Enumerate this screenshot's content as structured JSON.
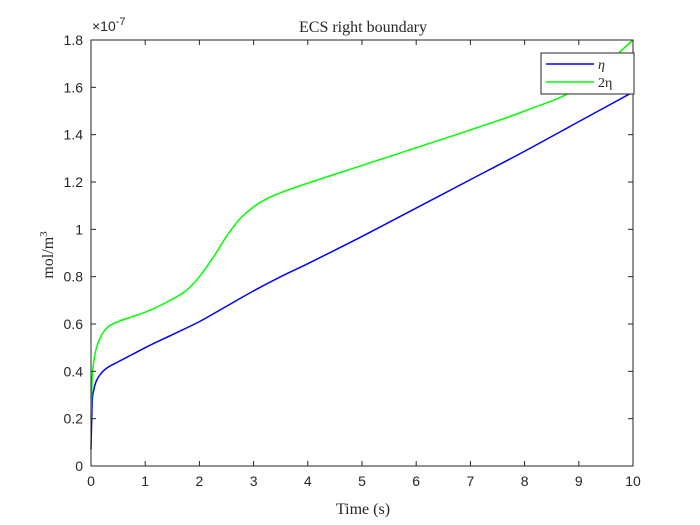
{
  "chart_data": {
    "type": "line",
    "title": "ECS right boundary",
    "xlabel": "Time (s)",
    "ylabel_base": "mol/m",
    "ylabel_exponent": "3",
    "y_multiplier": {
      "base": "×10",
      "exponent": "-7"
    },
    "xlim": [
      0,
      10
    ],
    "ylim": [
      0,
      1.8
    ],
    "x_ticks": [
      0,
      1,
      2,
      3,
      4,
      5,
      6,
      7,
      8,
      9,
      10
    ],
    "x_tick_labels": [
      "0",
      "1",
      "2",
      "3",
      "4",
      "5",
      "6",
      "7",
      "8",
      "9",
      "10"
    ],
    "y_ticks": [
      0,
      0.2,
      0.4,
      0.6,
      0.8,
      1.0,
      1.2,
      1.4,
      1.6,
      1.8
    ],
    "y_tick_labels": [
      "0",
      "0.2",
      "0.4",
      "0.6",
      "0.8",
      "1",
      "1.2",
      "1.4",
      "1.6",
      "1.8"
    ],
    "y_units_scale": "1e-7",
    "grid": false,
    "legend_position": "top-right",
    "series": [
      {
        "name": "η",
        "color": "#0000ff",
        "x": [
          0,
          0.02,
          0.05,
          0.1,
          0.2,
          0.3,
          0.5,
          0.75,
          1.0,
          1.5,
          2.0,
          2.5,
          3.0,
          3.5,
          4.0,
          5.0,
          6.0,
          7.0,
          8.0,
          9.0,
          10.0
        ],
        "y": [
          0.07,
          0.26,
          0.32,
          0.36,
          0.395,
          0.415,
          0.44,
          0.47,
          0.5,
          0.555,
          0.61,
          0.675,
          0.74,
          0.8,
          0.855,
          0.97,
          1.09,
          1.21,
          1.33,
          1.455,
          1.58
        ]
      },
      {
        "name": "2η",
        "color": "#00ff00",
        "x": [
          0,
          0.02,
          0.05,
          0.1,
          0.2,
          0.3,
          0.5,
          0.75,
          1.0,
          1.25,
          1.5,
          1.75,
          2.0,
          2.25,
          2.5,
          2.75,
          3.0,
          3.25,
          3.5,
          4.0,
          5.0,
          6.0,
          7.0,
          8.0,
          9.0,
          10.0
        ],
        "y": [
          0.2,
          0.36,
          0.44,
          0.5,
          0.555,
          0.585,
          0.61,
          0.63,
          0.65,
          0.675,
          0.705,
          0.74,
          0.8,
          0.88,
          0.97,
          1.045,
          1.095,
          1.13,
          1.155,
          1.195,
          1.27,
          1.345,
          1.42,
          1.5,
          1.6,
          1.8
        ]
      }
    ]
  }
}
